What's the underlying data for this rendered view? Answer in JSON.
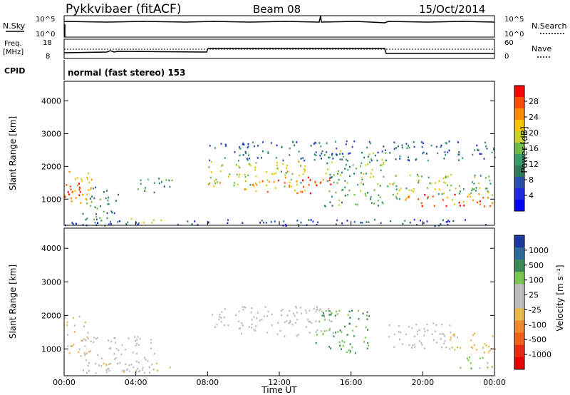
{
  "header": {
    "site": "Pykkvibaer (fitACF)",
    "beam": "Beam 08",
    "date": "15/Oct/2014"
  },
  "strip_labels": {
    "nsky": "N.Sky",
    "nsky_tick_hi": "10^5",
    "nsky_tick_lo": "10^0",
    "nsearch": "N.Search",
    "nsearch_tick_hi": "10^5",
    "nsearch_tick_lo": "10^0",
    "freq_line1": "Freq.",
    "freq_line2": "[MHz]",
    "freq_tick_hi": "18",
    "freq_tick_lo": "8",
    "nave": "Nave",
    "nave_tick_hi": "60",
    "nave_tick_lo": "0",
    "cpid": "CPID",
    "cpid_text": "normal (fast stereo) 153"
  },
  "colorbars": {
    "power": {
      "label": "Power [dB]",
      "ticks": [
        "28",
        "24",
        "20",
        "16",
        "12",
        "8",
        "4"
      ],
      "colors": [
        "#ff0000",
        "#ff4d00",
        "#ff8c00",
        "#f7c600",
        "#c8d22a",
        "#6fb84a",
        "#3a9a6a",
        "#2f7a5a",
        "#2a4fb0",
        "#1e2adc",
        "#0000ff"
      ]
    },
    "velocity": {
      "label": "Velocity [m s⁻¹]",
      "ticks": [
        "1000",
        "500",
        "100",
        "25",
        "-25",
        "-100",
        "-500",
        "-1000"
      ],
      "colors": [
        "#1a3aa0",
        "#2c6a9a",
        "#3c8a58",
        "#78c850",
        "#bdbdbd",
        "#bdbdbd",
        "#e8b84a",
        "#f08a2c",
        "#f0601c",
        "#e82a12",
        "#e80000"
      ]
    }
  },
  "chart_data": [
    {
      "type": "heatmap",
      "panel": "power",
      "ylabel": "Slant Range [km]",
      "ylim": [
        200,
        4600
      ],
      "yticks": [
        "1000",
        "2000",
        "3000",
        "4000"
      ],
      "xlim": [
        "00:00",
        "24:00"
      ],
      "xticks": [
        "00:00",
        "04:00",
        "08:00",
        "12:00",
        "16:00",
        "20:00",
        "00:00"
      ],
      "value_label": "Power [dB]",
      "value_range": [
        0,
        30
      ],
      "regions": [
        {
          "t": [
            0.0,
            1.5
          ],
          "r": [
            800,
            2000
          ],
          "level": 22
        },
        {
          "t": [
            0.0,
            1.0
          ],
          "r": [
            900,
            1500
          ],
          "level": 30
        },
        {
          "t": [
            1.0,
            3.0
          ],
          "r": [
            300,
            1400
          ],
          "level": 10
        },
        {
          "t": [
            3.0,
            5.5
          ],
          "r": [
            300,
            450
          ],
          "level": 16
        },
        {
          "t": [
            4.0,
            6.0
          ],
          "r": [
            1200,
            1700
          ],
          "level": 12
        },
        {
          "t": [
            8.0,
            13.5
          ],
          "r": [
            1400,
            2200
          ],
          "level": 18
        },
        {
          "t": [
            10.0,
            14.0
          ],
          "r": [
            1200,
            1600
          ],
          "level": 24
        },
        {
          "t": [
            13.0,
            15.0
          ],
          "r": [
            1400,
            1700
          ],
          "level": 28
        },
        {
          "t": [
            14.5,
            18.0
          ],
          "r": [
            800,
            2500
          ],
          "level": 14
        },
        {
          "t": [
            18.0,
            24.0
          ],
          "r": [
            1000,
            1800
          ],
          "level": 16
        },
        {
          "t": [
            19.0,
            24.0
          ],
          "r": [
            800,
            1200
          ],
          "level": 26
        },
        {
          "t": [
            8.0,
            24.0
          ],
          "r": [
            2200,
            2800
          ],
          "level": 8
        },
        {
          "t": [
            0.0,
            24.0
          ],
          "r": [
            200,
            400
          ],
          "level": 6
        }
      ]
    },
    {
      "type": "heatmap",
      "panel": "velocity",
      "ylabel": "Slant Range [km]",
      "ylim": [
        200,
        4600
      ],
      "yticks": [
        "1000",
        "2000",
        "3000",
        "4000"
      ],
      "xlim": [
        "00:00",
        "24:00"
      ],
      "xticks": [
        "00:00",
        "04:00",
        "08:00",
        "12:00",
        "16:00",
        "20:00",
        "00:00"
      ],
      "xlabel": "Time UT",
      "value_label": "Velocity [m s⁻¹]",
      "value_range": [
        -1000,
        1000
      ],
      "regions": [
        {
          "t": [
            0.0,
            1.5
          ],
          "r": [
            800,
            2000
          ],
          "level": -100
        },
        {
          "t": [
            1.0,
            5.0
          ],
          "r": [
            300,
            1400
          ],
          "level": 0
        },
        {
          "t": [
            2.0,
            6.0
          ],
          "r": [
            300,
            600
          ],
          "level": -100
        },
        {
          "t": [
            8.0,
            15.0
          ],
          "r": [
            1400,
            2300
          ],
          "level": 0
        },
        {
          "t": [
            14.0,
            17.0
          ],
          "r": [
            900,
            2200
          ],
          "level": 500
        },
        {
          "t": [
            18.0,
            22.0
          ],
          "r": [
            1000,
            1800
          ],
          "level": 0
        },
        {
          "t": [
            21.5,
            24.0
          ],
          "r": [
            900,
            1500
          ],
          "level": -200
        },
        {
          "t": [
            22.0,
            24.0
          ],
          "r": [
            400,
            800
          ],
          "level": 300
        }
      ]
    }
  ],
  "axes": {
    "ylabel": "Slant Range [km]",
    "xlabel": "Time UT"
  }
}
